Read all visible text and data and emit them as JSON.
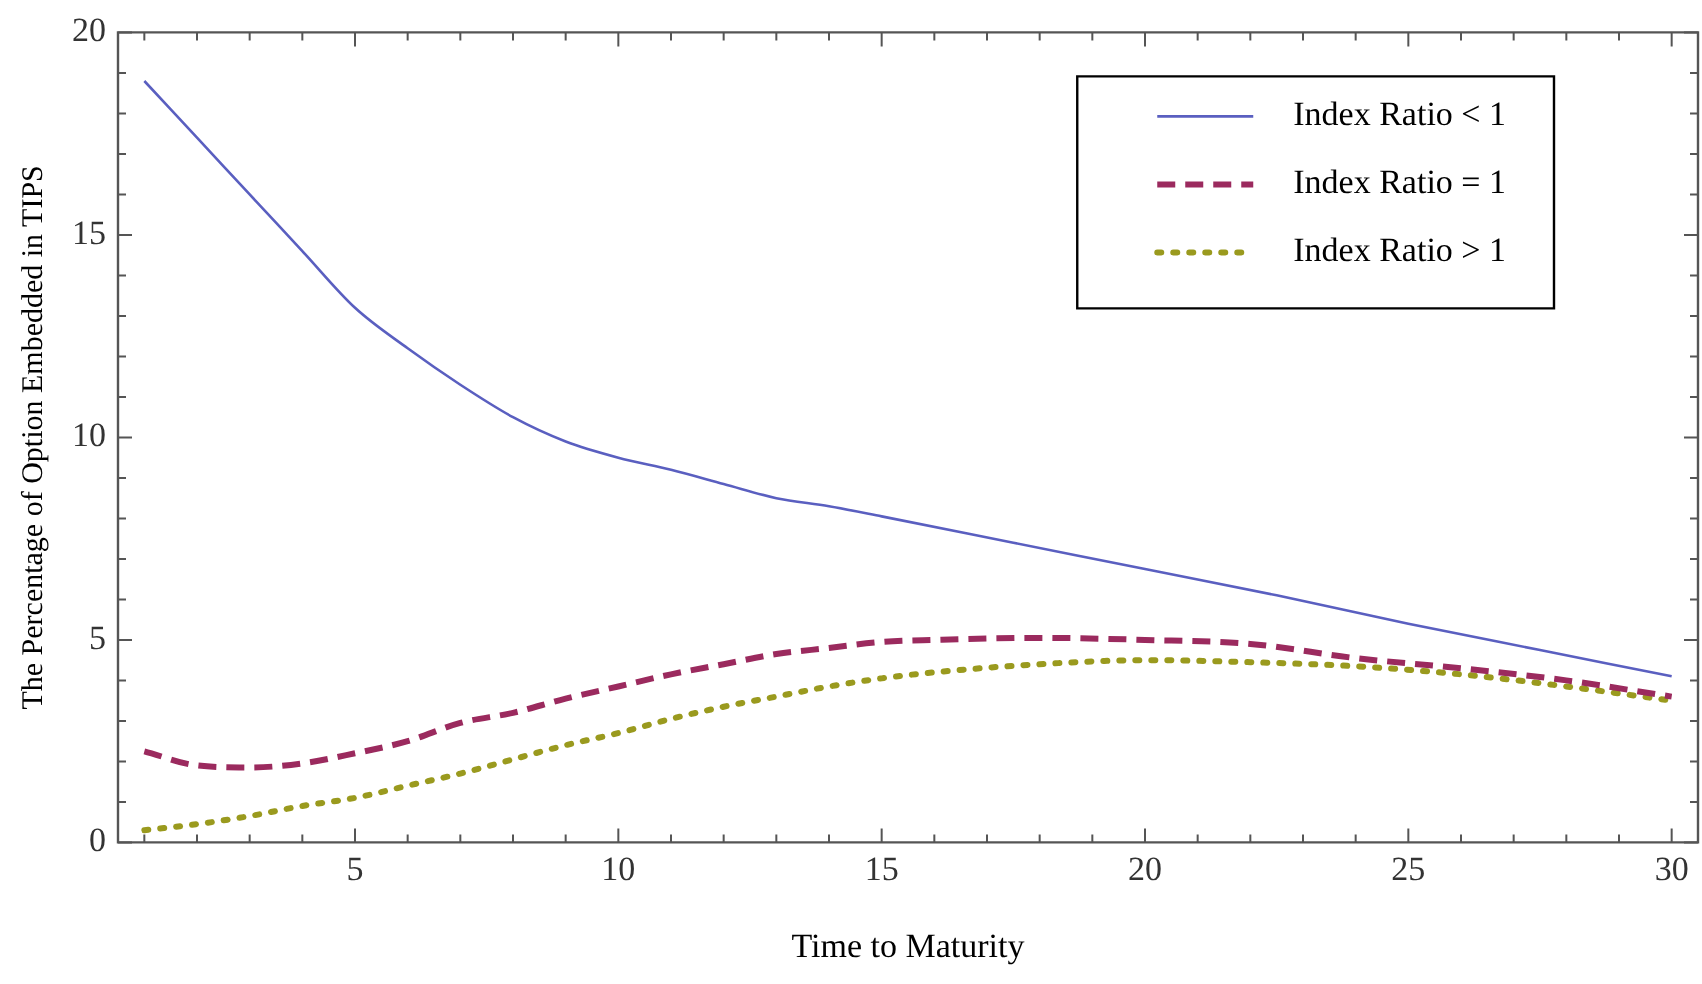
{
  "chart_data": {
    "type": "line",
    "xlabel": "Time to Maturity",
    "ylabel": "The Percentage of Option Embedded in TIPS",
    "x": [
      1,
      2,
      3,
      4,
      5,
      6,
      7,
      8,
      9,
      10,
      11,
      12,
      13,
      14,
      15,
      16,
      18,
      20,
      22,
      24,
      26,
      28,
      30
    ],
    "series": [
      {
        "name": "Index Ratio < 1",
        "color": "#5a5fc0",
        "line_style": "solid",
        "x": [
          1,
          2,
          3,
          4,
          5,
          6,
          7,
          8,
          9,
          10,
          11,
          12,
          13,
          14,
          15,
          17.5,
          20,
          22.5,
          25,
          27.5,
          30
        ],
        "values": [
          18.8,
          17.4,
          16.0,
          14.6,
          13.2,
          12.2,
          11.3,
          10.5,
          9.9,
          9.5,
          9.2,
          8.85,
          8.5,
          8.3,
          8.05,
          7.4,
          6.75,
          6.1,
          5.4,
          4.75,
          4.1
        ]
      },
      {
        "name": "Index Ratio = 1",
        "color": "#9b2a5e",
        "line_style": "dashed",
        "values": [
          2.25,
          1.9,
          1.85,
          1.95,
          2.2,
          2.5,
          2.95,
          3.2,
          3.55,
          3.85,
          4.15,
          4.4,
          4.65,
          4.8,
          4.95,
          5.0,
          5.05,
          5.0,
          4.9,
          4.55,
          4.3,
          4.0,
          3.6
        ]
      },
      {
        "name": "Index Ratio > 1",
        "color": "#9a9a1e",
        "line_style": "dotted",
        "values": [
          0.3,
          0.45,
          0.65,
          0.9,
          1.1,
          1.4,
          1.7,
          2.05,
          2.4,
          2.7,
          3.05,
          3.35,
          3.6,
          3.85,
          4.05,
          4.2,
          4.4,
          4.5,
          4.45,
          4.35,
          4.15,
          3.85,
          3.5
        ]
      }
    ],
    "xlim": [
      0.5,
      30.5
    ],
    "xticks": [
      {
        "value": 1,
        "label": null
      },
      {
        "value": 2,
        "label": null
      },
      {
        "value": 3,
        "label": null
      },
      {
        "value": 4,
        "label": null
      },
      5,
      {
        "value": 6,
        "label": null
      },
      {
        "value": 7,
        "label": null
      },
      {
        "value": 8,
        "label": null
      },
      {
        "value": 9,
        "label": null
      },
      10,
      {
        "value": 11,
        "label": null
      },
      {
        "value": 12,
        "label": null
      },
      {
        "value": 13,
        "label": null
      },
      {
        "value": 14,
        "label": null
      },
      15,
      {
        "value": 16,
        "label": null
      },
      {
        "value": 17,
        "label": null
      },
      {
        "value": 18,
        "label": null
      },
      {
        "value": 19,
        "label": null
      },
      20,
      {
        "value": 21,
        "label": null
      },
      {
        "value": 22,
        "label": null
      },
      {
        "value": 23,
        "label": null
      },
      {
        "value": 24,
        "label": null
      },
      25,
      {
        "value": 26,
        "label": null
      },
      {
        "value": 27,
        "label": null
      },
      {
        "value": 28,
        "label": null
      },
      {
        "value": 29,
        "label": null
      },
      30
    ],
    "ylim": [
      0,
      20
    ],
    "yticks": [
      0,
      {
        "value": 1,
        "label": null
      },
      {
        "value": 2,
        "label": null
      },
      {
        "value": 3,
        "label": null
      },
      {
        "value": 4,
        "label": null
      },
      5,
      {
        "value": 6,
        "label": null
      },
      {
        "value": 7,
        "label": null
      },
      {
        "value": 8,
        "label": null
      },
      {
        "value": 9,
        "label": null
      },
      10,
      {
        "value": 11,
        "label": null
      },
      {
        "value": 12,
        "label": null
      },
      {
        "value": 13,
        "label": null
      },
      {
        "value": 14,
        "label": null
      },
      15,
      {
        "value": 16,
        "label": null
      },
      {
        "value": 17,
        "label": null
      },
      {
        "value": 18,
        "label": null
      },
      {
        "value": 19,
        "label": null
      },
      20
    ],
    "grid": false,
    "legend": "top right",
    "marker": "none"
  }
}
